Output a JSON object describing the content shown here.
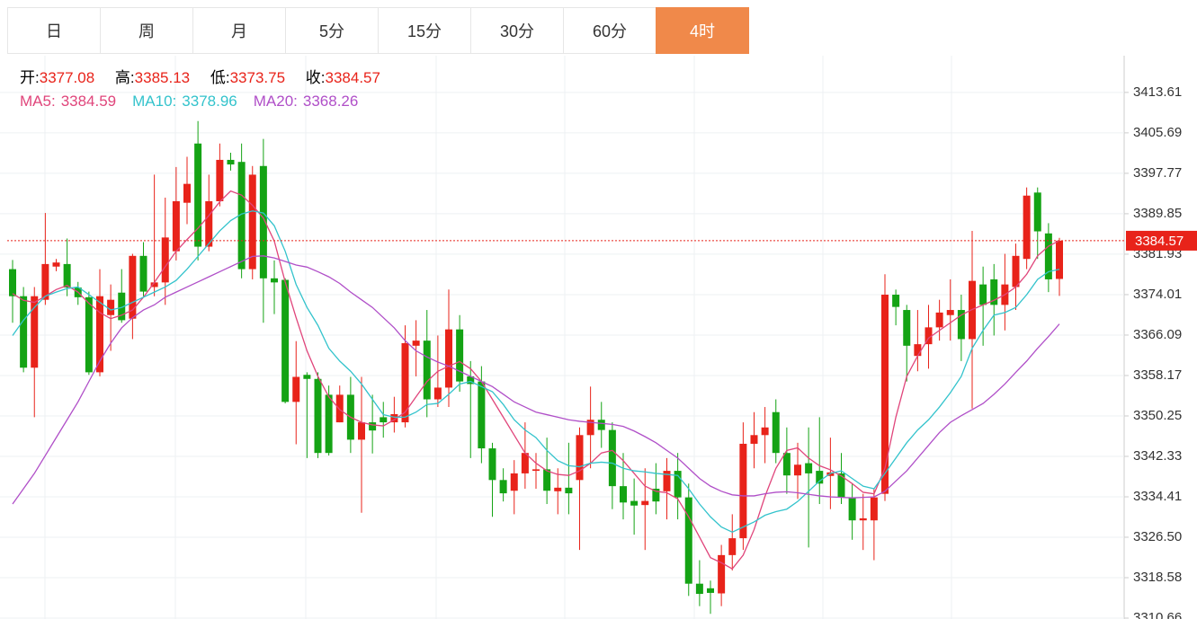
{
  "chart_data": {
    "type": "candlestick",
    "tabs": [
      "日",
      "周",
      "月",
      "5分",
      "15分",
      "30分",
      "60分",
      "4时"
    ],
    "active_tab": 7,
    "ohlc_labels": [
      "开:",
      "高:",
      "低:",
      "收:"
    ],
    "up_color": "#e8231a",
    "down_color": "#14a314",
    "open": [
      3379,
      3373.7,
      3359.7,
      3373,
      3379.5,
      3380,
      3375.4,
      3373.5,
      3358.8,
      3370,
      3374.4,
      3369.3,
      3381.6,
      3375.5,
      3376.4,
      3382.5,
      3392,
      3403.6,
      3383.4,
      3392.3,
      3400.4,
      3400,
      3379,
      3399.2,
      3377.2,
      3376.9,
      3353,
      3358.3,
      3357.5,
      3354.4,
      3349,
      3354.4,
      3345.6,
      3349,
      3350,
      3349,
      3349,
      3364,
      3365,
      3353.5,
      3355.8,
      3367.2,
      3358,
      3357,
      3343.9,
      3337.7,
      3335.6,
      3339,
      3339.5,
      3339.8,
      3335.5,
      3336.2,
      3337.7,
      3346.5,
      3349.5,
      3347.5,
      3336.5,
      3333.6,
      3332.8,
      3336,
      3335.5,
      3339.5,
      3334.3,
      3317.4,
      3316.5,
      3315.5,
      3323,
      3326.3,
      3344.8,
      3346.5,
      3351,
      3343,
      3338.6,
      3341,
      3339.5,
      3338.5,
      3339,
      3334.3,
      3329.8,
      3329.8,
      3335,
      3374,
      3371,
      3362,
      3364.3,
      3367.6,
      3370,
      3371,
      3365.3,
      3376,
      3377,
      3372,
      3375.5,
      3381,
      3394,
      3386,
      3377.08
    ],
    "high": [
      3380.8,
      3375.5,
      3375.5,
      3390,
      3381,
      3385,
      3376.5,
      3374.6,
      3379,
      3376,
      3379,
      3382,
      3384.3,
      3397.5,
      3393,
      3399,
      3401,
      3408,
      3397.5,
      3403.6,
      3401.8,
      3403.6,
      3399.2,
      3404.5,
      3380.7,
      3377.2,
      3364.9,
      3358.8,
      3358.8,
      3356.2,
      3356.2,
      3357.9,
      3357.9,
      3354.4,
      3353,
      3354,
      3368,
      3369,
      3371,
      3366,
      3375,
      3370,
      3361,
      3360,
      3345,
      3340,
      3341.6,
      3349,
      3343,
      3346,
      3340,
      3345,
      3348,
      3356,
      3353,
      3349,
      3343,
      3338,
      3340,
      3341,
      3342,
      3343,
      3337,
      3322,
      3318,
      3325,
      3331,
      3349,
      3351,
      3352,
      3353.5,
      3348,
      3345,
      3348,
      3350,
      3346,
      3343,
      3337,
      3335,
      3336,
      3378,
      3375,
      3372,
      3371,
      3372,
      3373,
      3377,
      3374,
      3386.5,
      3379.5,
      3380,
      3382,
      3384,
      3395,
      3395,
      3388,
      3385.13
    ],
    "low": [
      3368.5,
      3358.8,
      3350,
      3372,
      3378.6,
      3373.7,
      3372,
      3358.3,
      3358,
      3363,
      3368.5,
      3365.3,
      3373.7,
      3373.7,
      3372,
      3380.7,
      3387.8,
      3380.7,
      3382.5,
      3391.3,
      3398.3,
      3377.2,
      3377,
      3368.5,
      3370.2,
      3352.7,
      3344.7,
      3342,
      3342,
      3342.5,
      3349,
      3343,
      3331.3,
      3342.9,
      3346,
      3347,
      3348,
      3358,
      3350,
      3352,
      3352,
      3355,
      3342,
      3341,
      3330.5,
      3333.5,
      3331,
      3336,
      3336,
      3333,
      3331,
      3331,
      3324,
      3340,
      3344,
      3332,
      3330,
      3327,
      3324,
      3331,
      3330,
      3330,
      3315,
      3313,
      3311.5,
      3313,
      3320,
      3324,
      3340,
      3341,
      3341,
      3335,
      3334,
      3324.5,
      3333,
      3332,
      3333,
      3326,
      3324,
      3322,
      3333.6,
      3368,
      3357,
      3359,
      3359.5,
      3365,
      3365,
      3361,
      3351.7,
      3364,
      3366,
      3367,
      3371,
      3379,
      3381,
      3374.5,
      3373.75
    ],
    "close": [
      3373.7,
      3359.7,
      3373.7,
      3380,
      3380.3,
      3375.4,
      3373.5,
      3358.8,
      3373.7,
      3373,
      3369,
      3381.6,
      3374.6,
      3376.4,
      3385.2,
      3392.3,
      3395.7,
      3383.4,
      3392.3,
      3400.4,
      3399.5,
      3379,
      3397.5,
      3377.2,
      3376.4,
      3353,
      3357.9,
      3357.5,
      3343,
      3343,
      3354.4,
      3345.6,
      3349,
      3347.4,
      3349,
      3350.6,
      3364.5,
      3365,
      3353.5,
      3355.8,
      3367.2,
      3357,
      3356.5,
      3343.9,
      3337.7,
      3335.1,
      3339,
      3343,
      3339.8,
      3335.6,
      3336.2,
      3335.1,
      3346.5,
      3349.5,
      3347.5,
      3336.5,
      3333.3,
      3332.7,
      3333.6,
      3333.5,
      3339.5,
      3334.3,
      3317.4,
      3315.4,
      3315.6,
      3323,
      3326.3,
      3344.8,
      3346.5,
      3348,
      3343,
      3338.6,
      3340.7,
      3339,
      3337,
      3339.2,
      3334.3,
      3329.8,
      3330.2,
      3334.3,
      3374,
      3371.6,
      3364,
      3364.3,
      3367.6,
      3370.5,
      3371,
      3365.3,
      3376.7,
      3372,
      3372,
      3376,
      3381.6,
      3393.4,
      3386.4,
      3377,
      3384.57
    ],
    "series": [
      {
        "name": "MA5:",
        "color": "#e0457b",
        "values": [
          3374.2,
          3372.9,
          3372.5,
          3373.7,
          3375,
          3375.8,
          3374.5,
          3372.3,
          3370.5,
          3369.3,
          3370,
          3371,
          3373.5,
          3376.4,
          3379.5,
          3382.5,
          3384.8,
          3387,
          3389.5,
          3392.2,
          3394.3,
          3393.5,
          3391.5,
          3389,
          3384.5,
          3376.5,
          3369.5,
          3363,
          3358,
          3354,
          3351.5,
          3350,
          3349,
          3348.5,
          3348.3,
          3349.5,
          3351,
          3354,
          3357,
          3359,
          3360,
          3360.9,
          3359.5,
          3357,
          3353.5,
          3350,
          3346.5,
          3343,
          3341,
          3339.5,
          3338.8,
          3338.6,
          3339.5,
          3341,
          3343,
          3343.5,
          3341.5,
          3339,
          3336.5,
          3335.5,
          3335.2,
          3334,
          3330.5,
          3326.5,
          3322.5,
          3321.5,
          3320.3,
          3323,
          3328,
          3334.5,
          3340,
          3343.5,
          3344,
          3342,
          3340.5,
          3339.7,
          3338.5,
          3337,
          3335.3,
          3335,
          3340,
          3350,
          3358,
          3362,
          3365.5,
          3367,
          3368.5,
          3370,
          3371.1,
          3372,
          3372.9,
          3374,
          3375.5,
          3378,
          3381.6,
          3383.5,
          3384.59
        ]
      },
      {
        "name": "MA10:",
        "color": "#33c3cc",
        "values": [
          3366,
          3369,
          3371.5,
          3373.7,
          3374.5,
          3375.2,
          3375.5,
          3374,
          3372.5,
          3371,
          3371.5,
          3372.5,
          3373.5,
          3374.5,
          3375.5,
          3376.8,
          3379,
          3381.5,
          3384,
          3386.5,
          3388.5,
          3389.8,
          3390.4,
          3390,
          3387.5,
          3382.5,
          3376,
          3371.5,
          3368,
          3363.5,
          3361,
          3359,
          3356.5,
          3353.5,
          3350.5,
          3350,
          3350,
          3351,
          3352.5,
          3352.7,
          3354.5,
          3356.5,
          3357,
          3356,
          3355,
          3352.5,
          3349.5,
          3347.5,
          3346,
          3343.5,
          3341.5,
          3340.5,
          3340.3,
          3341,
          3341.2,
          3341,
          3340,
          3339.5,
          3339.3,
          3339,
          3338.8,
          3338.6,
          3336,
          3333,
          3330.5,
          3328.5,
          3327.5,
          3328.5,
          3329.5,
          3330.8,
          3331.5,
          3332,
          3333.5,
          3335.5,
          3337.5,
          3339,
          3339.5,
          3338,
          3336.5,
          3336,
          3339,
          3342,
          3345,
          3347.5,
          3349.5,
          3352,
          3354.8,
          3358,
          3363.5,
          3367,
          3370,
          3370.5,
          3371.5,
          3374,
          3377,
          3378.5,
          3378.96
        ]
      },
      {
        "name": "MA20:",
        "color": "#b04fc8",
        "values": [
          3333,
          3336,
          3339,
          3342.5,
          3346,
          3349.5,
          3353,
          3357,
          3361,
          3364.5,
          3367.5,
          3369.5,
          3371,
          3372,
          3373.5,
          3374.5,
          3375.5,
          3376.5,
          3377.5,
          3378.5,
          3379.5,
          3380.5,
          3381.5,
          3381.6,
          3381.2,
          3380.5,
          3379.8,
          3379.4,
          3378.5,
          3377.5,
          3376.2,
          3374.5,
          3373,
          3371.5,
          3369.5,
          3367.5,
          3365,
          3363,
          3361.8,
          3360.8,
          3360,
          3359,
          3358,
          3357,
          3356,
          3354.5,
          3353,
          3352,
          3351,
          3350.5,
          3350,
          3349.5,
          3349.2,
          3349,
          3348.8,
          3348.6,
          3348.2,
          3347.3,
          3346.2,
          3345,
          3343.5,
          3342,
          3340,
          3338,
          3336.5,
          3335.5,
          3334.8,
          3334.6,
          3334.6,
          3335,
          3335.3,
          3335.4,
          3335.2,
          3334.9,
          3334.6,
          3334.4,
          3334.3,
          3334.2,
          3334.3,
          3334.4,
          3335.5,
          3337.5,
          3339.5,
          3342,
          3344.5,
          3347,
          3349,
          3350.3,
          3351.5,
          3352.7,
          3354.5,
          3356.5,
          3358.8,
          3361,
          3363.5,
          3365.8,
          3368.26
        ]
      }
    ],
    "ylim": [
      3310.66,
      3420.8
    ],
    "yticks": [
      3413.61,
      3405.69,
      3397.77,
      3389.85,
      3381.93,
      3374.01,
      3366.09,
      3358.17,
      3350.25,
      3342.33,
      3334.41,
      {
        "value": 3326.5,
        "label": "3326.50"
      },
      3318.58,
      3310.66
    ],
    "grid": true,
    "last_price_line": true
  }
}
